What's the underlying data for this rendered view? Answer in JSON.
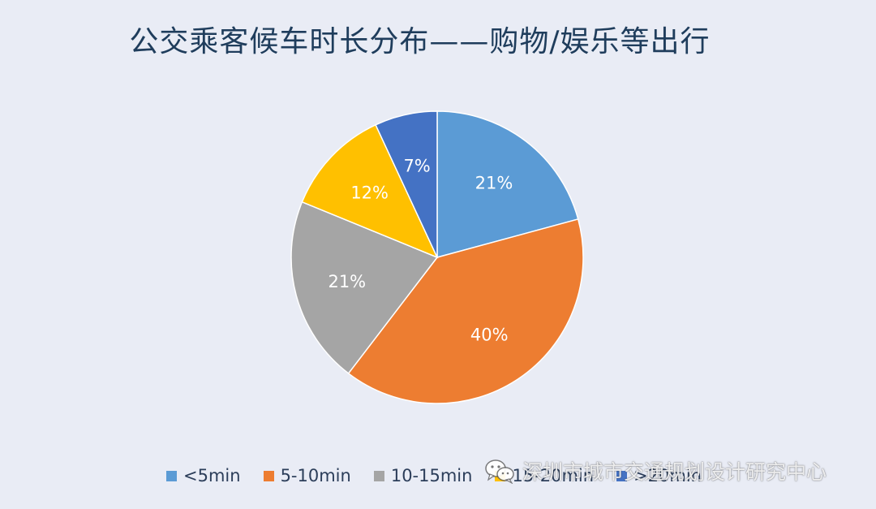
{
  "chart_data": {
    "type": "pie",
    "title": "公交乘客候车时长分布——购物/娱乐等出行",
    "categories": [
      "<5min",
      "5-10min",
      "10-15min",
      "15-20min",
      ">20min"
    ],
    "values": [
      21,
      40,
      21,
      12,
      7
    ],
    "labels": [
      "21%",
      "40%",
      "21%",
      "12%",
      "7%"
    ],
    "colors": [
      "#5b9bd5",
      "#ed7d31",
      "#a5a5a5",
      "#ffc000",
      "#4472c4"
    ],
    "legend_position": "bottom"
  },
  "watermark": {
    "text": "深圳市城市交通规划设计研究中心",
    "icon": "wechat-icon"
  }
}
